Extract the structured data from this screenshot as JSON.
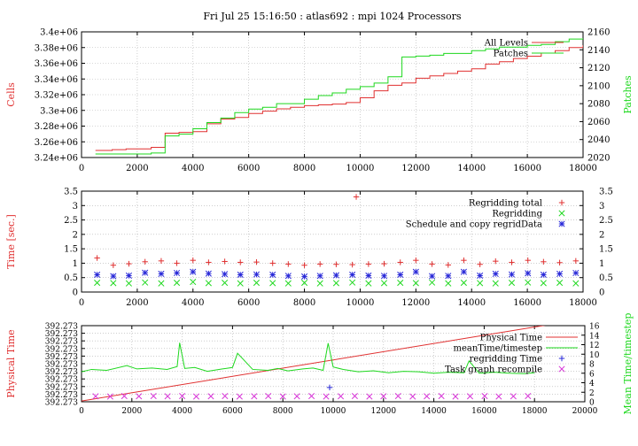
{
  "figure_title": "Fri Jul 25 15:16:50 : atlas692 : mpi 1024 Processors",
  "colors": {
    "red": "#e03030",
    "green": "#1ed81e",
    "blue": "#2828d8",
    "magenta": "#d838d8",
    "grid": "#b0b0b0",
    "axis": "#000000"
  },
  "chart_data": [
    {
      "type": "line",
      "ylabel": "Cells",
      "y2label": "Patches",
      "xlim": [
        0,
        18000
      ],
      "ylim": [
        3240000,
        3400000
      ],
      "y2lim": [
        2020,
        2160
      ],
      "grid": true,
      "legend_position": "top-right",
      "x_ticks": [
        "0",
        "2000",
        "4000",
        "6000",
        "8000",
        "10000",
        "12000",
        "14000",
        "16000",
        "18000"
      ],
      "y_ticks": [
        "3.24e+06",
        "3.26e+06",
        "3.28e+06",
        "3.3e+06",
        "3.32e+06",
        "3.34e+06",
        "3.36e+06",
        "3.38e+06",
        "3.4e+06"
      ],
      "y2_ticks": [
        "2020",
        "2040",
        "2060",
        "2080",
        "2100",
        "2120",
        "2140",
        "2160"
      ],
      "series": [
        {
          "name": "All Levels",
          "axis": "left",
          "color": "#e03030",
          "x": [
            500,
            1100,
            1600,
            2000,
            2500,
            3000,
            3500,
            4000,
            4500,
            5000,
            5500,
            6000,
            6500,
            7000,
            7500,
            8000,
            8500,
            9000,
            9500,
            10000,
            10500,
            11000,
            11500,
            12000,
            12500,
            13000,
            13500,
            14000,
            14500,
            15000,
            15500,
            16000,
            16500,
            17000,
            17500,
            18000
          ],
          "y": [
            3249000,
            3250000,
            3251000,
            3251000,
            3253000,
            3271000,
            3272000,
            3273000,
            3283000,
            3289000,
            3291000,
            3296000,
            3299000,
            3302000,
            3304000,
            3306000,
            3307000,
            3308000,
            3310000,
            3316000,
            3325000,
            3332000,
            3335000,
            3341000,
            3344000,
            3347000,
            3350000,
            3353000,
            3359000,
            3362000,
            3366000,
            3369000,
            3373000,
            3376000,
            3380000,
            3383000
          ]
        },
        {
          "name": "Patches",
          "axis": "right",
          "color": "#1ed81e",
          "x": [
            500,
            1100,
            1600,
            2000,
            2500,
            3000,
            3500,
            4000,
            4500,
            5000,
            5500,
            6000,
            6500,
            7000,
            7500,
            8000,
            8500,
            9000,
            9500,
            10000,
            10500,
            11000,
            11500,
            12000,
            12500,
            13000,
            13500,
            14000,
            14500,
            15000,
            15500,
            16000,
            16500,
            17000,
            17500,
            18000
          ],
          "y": [
            2024,
            2024,
            2024,
            2024,
            2025,
            2044,
            2046,
            2052,
            2059,
            2064,
            2070,
            2074,
            2076,
            2080,
            2080,
            2085,
            2089,
            2092,
            2096,
            2099,
            2103,
            2110,
            2132,
            2133,
            2134,
            2136,
            2136,
            2139,
            2141,
            2143,
            2143,
            2145,
            2146,
            2149,
            2152,
            2153
          ]
        }
      ]
    },
    {
      "type": "scatter",
      "ylabel": "Time [sec.]",
      "xlim": [
        0,
        18000
      ],
      "ylim": [
        0,
        3.5
      ],
      "grid": true,
      "legend_position": "top-right",
      "x_ticks": [
        "0",
        "2000",
        "4000",
        "6000",
        "8000",
        "10000",
        "12000",
        "14000",
        "16000",
        "18000"
      ],
      "y_ticks": [
        "0",
        "0.5",
        "1",
        "1.5",
        "2",
        "2.5",
        "3",
        "3.5"
      ],
      "series": [
        {
          "name": "Regridding total",
          "marker": "+",
          "color": "#e03030",
          "x": [
            560,
            1140,
            1700,
            2280,
            2860,
            3420,
            4000,
            4560,
            5140,
            5700,
            6280,
            6860,
            7420,
            8000,
            8560,
            9140,
            9720,
            10300,
            10860,
            11440,
            12000,
            12580,
            13160,
            13720,
            14300,
            14860,
            15440,
            16020,
            16580,
            17160,
            17740,
            9860
          ],
          "y": [
            1.18,
            0.93,
            0.98,
            1.05,
            1.08,
            1.0,
            1.1,
            1.03,
            1.06,
            1.03,
            1.04,
            1.0,
            0.97,
            0.93,
            0.97,
            0.96,
            0.95,
            0.97,
            0.98,
            1.03,
            1.1,
            0.97,
            0.94,
            1.1,
            0.96,
            1.07,
            1.03,
            1.1,
            1.05,
            1.02,
            1.08,
            3.3
          ]
        },
        {
          "name": "Regridding",
          "marker": "x",
          "color": "#1ed81e",
          "x": [
            560,
            1140,
            1700,
            2280,
            2860,
            3420,
            4000,
            4560,
            5140,
            5700,
            6280,
            6860,
            7420,
            8000,
            8560,
            9140,
            9720,
            10300,
            10860,
            11440,
            12000,
            12580,
            13160,
            13720,
            14300,
            14860,
            15440,
            16020,
            16580,
            17160,
            17740
          ],
          "y": [
            0.32,
            0.31,
            0.3,
            0.33,
            0.3,
            0.32,
            0.35,
            0.31,
            0.32,
            0.3,
            0.32,
            0.31,
            0.3,
            0.32,
            0.3,
            0.31,
            0.33,
            0.3,
            0.31,
            0.32,
            0.31,
            0.33,
            0.3,
            0.32,
            0.31,
            0.3,
            0.32,
            0.33,
            0.31,
            0.32,
            0.3
          ]
        },
        {
          "name": "Schedule and copy regridData",
          "marker": "*",
          "color": "#2828d8",
          "x": [
            560,
            1140,
            1700,
            2280,
            2860,
            3420,
            4000,
            4560,
            5140,
            5700,
            6280,
            6860,
            7420,
            8000,
            8560,
            9140,
            9720,
            10300,
            10860,
            11440,
            12000,
            12580,
            13160,
            13720,
            14300,
            14860,
            15440,
            16020,
            16580,
            17160,
            17740
          ],
          "y": [
            0.6,
            0.55,
            0.57,
            0.67,
            0.63,
            0.66,
            0.7,
            0.64,
            0.62,
            0.6,
            0.61,
            0.6,
            0.56,
            0.54,
            0.56,
            0.58,
            0.6,
            0.57,
            0.56,
            0.6,
            0.7,
            0.55,
            0.56,
            0.7,
            0.57,
            0.63,
            0.61,
            0.65,
            0.6,
            0.63,
            0.66
          ]
        }
      ]
    },
    {
      "type": "line",
      "ylabel": "Physical Time",
      "y2label": "Mean Time/timestep",
      "xlim": [
        0,
        20000
      ],
      "ylim": [
        0,
        10
      ],
      "y2lim": [
        0,
        16
      ],
      "grid": true,
      "legend_position": "top-right",
      "x_ticks": [
        "0",
        "2000",
        "4000",
        "6000",
        "8000",
        "10000",
        "12000",
        "14000",
        "16000",
        "18000",
        "20000"
      ],
      "y_ticks": [
        "392.273",
        "392.273",
        "392.273",
        "392.273",
        "392.273",
        "392.273",
        "392.273",
        "392.273",
        "392.273",
        "392.273",
        "392.273"
      ],
      "y2_ticks": [
        "0",
        "2",
        "4",
        "6",
        "8",
        "10",
        "12",
        "14",
        "16"
      ],
      "series": [
        {
          "name": "Physical Time",
          "axis": "left",
          "color": "#e03030",
          "x": [
            0,
            20000
          ],
          "y": [
            0.1,
            10.9
          ]
        },
        {
          "name": "meanTime/timestep",
          "axis": "right",
          "color": "#1ed81e",
          "x": [
            0,
            400,
            1000,
            1800,
            2200,
            2800,
            3400,
            3800,
            3900,
            4100,
            4500,
            5000,
            5600,
            6000,
            6200,
            6800,
            7400,
            7800,
            8200,
            8800,
            9200,
            9600,
            9800,
            10000,
            10400,
            11000,
            11600,
            12200,
            12800,
            13400,
            14000,
            14600,
            15200,
            15400,
            15800,
            16400,
            17000,
            17600,
            18000
          ],
          "y": [
            6.3,
            6.8,
            6.6,
            7.6,
            6.9,
            7.1,
            6.8,
            7.4,
            12.4,
            7.0,
            7.2,
            6.4,
            6.9,
            7.2,
            10.2,
            6.8,
            6.6,
            7.0,
            6.5,
            6.9,
            7.1,
            6.6,
            12.3,
            7.3,
            6.8,
            6.3,
            6.5,
            6.1,
            6.4,
            6.3,
            6.0,
            6.2,
            6.1,
            8.6,
            6.0,
            6.2,
            6.0,
            5.9,
            6.1
          ]
        },
        {
          "name": "regridding Time",
          "axis": "right",
          "marker": "+",
          "color": "#2828d8",
          "x": [
            9860
          ],
          "y": [
            3.0
          ]
        },
        {
          "name": "Task graph recompile",
          "axis": "right",
          "marker": "x",
          "color": "#d838d8",
          "x": [
            560,
            1140,
            1700,
            2280,
            2860,
            3420,
            4000,
            4560,
            5140,
            5700,
            6280,
            6860,
            7420,
            8000,
            8560,
            9140,
            9720,
            10300,
            10860,
            11440,
            12000,
            12580,
            13160,
            13720,
            14300,
            14860,
            15440,
            16020,
            16580,
            17160,
            17740
          ],
          "y": [
            1.15,
            1.1,
            1.2,
            1.15,
            1.2,
            1.15,
            1.2,
            1.1,
            1.15,
            1.2,
            1.1,
            1.15,
            1.2,
            1.1,
            1.15,
            1.2,
            1.1,
            1.15,
            1.2,
            1.1,
            1.15,
            1.2,
            1.1,
            1.15,
            1.2,
            1.1,
            1.15,
            1.2,
            1.1,
            1.15,
            1.2
          ]
        }
      ]
    }
  ]
}
